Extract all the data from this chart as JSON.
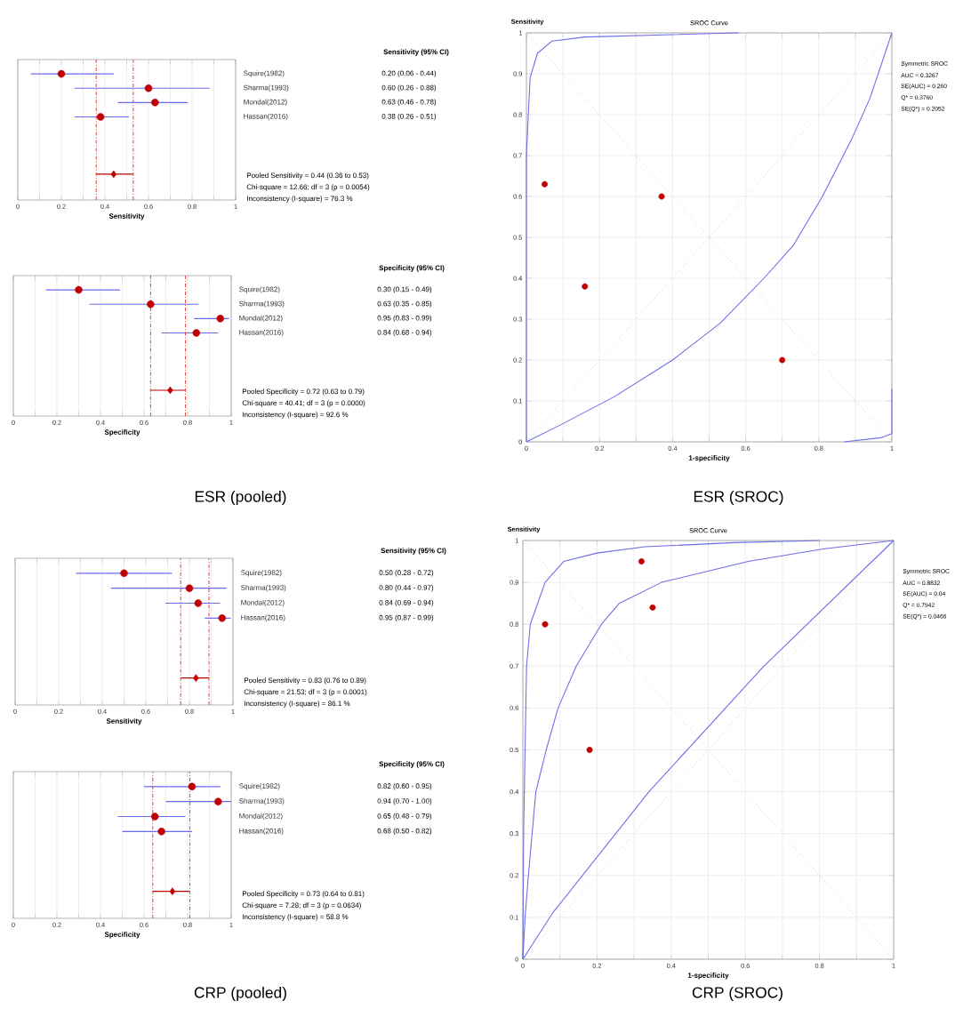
{
  "chart_data": [
    {
      "type": "scatter",
      "orientation": "horizontal",
      "xlabel": "Sensitivity",
      "categories": [
        "Squire(1982)",
        "Sharma(1993)",
        "Mondal(2012)",
        "Hassan(2016)",
        null,
        null,
        null,
        null
      ],
      "xlim": [
        0,
        1
      ],
      "xticks": [
        0,
        {
          "value": 0.1,
          "label": null
        },
        0.2,
        {
          "value": 0.3,
          "label": null
        },
        0.4,
        {
          "value": 0.5,
          "label": null
        },
        0.6,
        {
          "value": 0.7,
          "label": null
        },
        0.8,
        {
          "value": 0.9,
          "label": null
        },
        1
      ],
      "grid": "x",
      "series": [
        {
          "color": "#c00000",
          "marker": "circle",
          "values": [
            0.2,
            0.6,
            0.63,
            0.38,
            null,
            null,
            null,
            null
          ],
          "errors": [
            [
              0.06,
              0.44
            ],
            [
              0.26,
              0.88
            ],
            [
              0.46,
              0.78
            ],
            [
              0.26,
              0.51
            ],
            null,
            null,
            null,
            null
          ],
          "value_labels": [
            "0.20  (0.06 - 0.44)",
            "0.60  (0.26 - 0.88)",
            "0.63  (0.46 - 0.78)",
            "0.38  (0.26 - 0.51)",
            null,
            null,
            null,
            null
          ]
        },
        {
          "color": "#c00000",
          "marker": "diamond",
          "values": [
            null,
            null,
            null,
            null,
            null,
            null,
            null,
            0.44
          ],
          "errors": [
            null,
            null,
            null,
            null,
            null,
            null,
            null,
            [
              0.36,
              0.53
            ]
          ]
        }
      ],
      "ref_lines": [
        {
          "axis": "x",
          "value": 0.36,
          "color": "#e03030",
          "line_style": "dashed"
        },
        {
          "axis": "x",
          "value": 0.53,
          "color": "#e03030",
          "line_style": "dashed"
        }
      ],
      "annotations": [
        "Sensitivity (95% CI)",
        "Pooled Sensitivity = 0.44 (0.36 to 0.53)",
        "Chi-square = 12.66; df = 3 (p = 0.0054)",
        "Inconsistency (I-square) = 76.3 %"
      ]
    },
    {
      "type": "scatter",
      "orientation": "horizontal",
      "xlabel": "Specificity",
      "categories": [
        "Squire(1982)",
        "Sharma(1993)",
        "Mondal(2012)",
        "Hassan(2016)",
        null,
        null,
        null,
        null
      ],
      "xlim": [
        0,
        1
      ],
      "xticks": [
        0,
        {
          "value": 0.1,
          "label": null
        },
        0.2,
        {
          "value": 0.3,
          "label": null
        },
        0.4,
        {
          "value": 0.5,
          "label": null
        },
        0.6,
        {
          "value": 0.7,
          "label": null
        },
        0.8,
        {
          "value": 0.9,
          "label": null
        },
        1
      ],
      "grid": "x",
      "series": [
        {
          "color": "#c00000",
          "marker": "circle",
          "values": [
            0.3,
            0.63,
            0.95,
            0.84,
            null,
            null,
            null,
            null
          ],
          "errors": [
            [
              0.15,
              0.49
            ],
            [
              0.35,
              0.85
            ],
            [
              0.83,
              0.99
            ],
            [
              0.68,
              0.94
            ],
            null,
            null,
            null,
            null
          ],
          "value_labels": [
            "0.30  (0.15 - 0.49)",
            "0.63  (0.35 - 0.85)",
            "0.95  (0.83 - 0.99)",
            "0.84  (0.68 - 0.94)",
            null,
            null,
            null,
            null
          ]
        },
        {
          "color": "#c00000",
          "marker": "diamond",
          "values": [
            null,
            null,
            null,
            null,
            null,
            null,
            null,
            0.72
          ],
          "errors": [
            null,
            null,
            null,
            null,
            null,
            null,
            null,
            [
              0.63,
              0.79
            ]
          ]
        }
      ],
      "ref_lines": [
        {
          "axis": "x",
          "value": 0.63,
          "color": "#e03030",
          "line_style": "dashed"
        },
        {
          "axis": "x",
          "value": 0.79,
          "color": "#e03030",
          "line_style": "dashed"
        }
      ],
      "annotations": [
        "Specificity (95% CI)",
        "Pooled Specificity = 0.72 (0.63 to 0.79)",
        "Chi-square = 40.41; df = 3 (p = 0.0000)",
        "Inconsistency (I-square) = 92.6 %",
        "ESR (pooled)"
      ]
    },
    {
      "type": "line",
      "title": "SROC Curve",
      "ylabel": "Sensitivity",
      "xlabel": "1-specificity",
      "xlim": [
        0,
        1
      ],
      "ylim": [
        0,
        1
      ],
      "xticks": [
        0,
        {
          "value": 0.1,
          "label": null
        },
        0.2,
        {
          "value": 0.3,
          "label": null
        },
        0.4,
        {
          "value": 0.5,
          "label": null
        },
        0.6,
        {
          "value": 0.7,
          "label": null
        },
        0.8,
        {
          "value": 0.9,
          "label": null
        },
        1
      ],
      "yticks": [
        0,
        0.1,
        0.2,
        0.3,
        0.4,
        0.5,
        0.6,
        0.7,
        0.8,
        0.9,
        1
      ],
      "grid": true,
      "series": [
        {
          "color": "#dcdcdc",
          "line_style": "dotted",
          "x": [
            0,
            1
          ],
          "values": [
            0,
            1
          ]
        },
        {
          "color": "#dcdcdc",
          "line_style": "dotted",
          "x": [
            0,
            1
          ],
          "values": [
            1,
            0
          ]
        },
        {
          "color": "#6c6ce8",
          "x": [
            0,
            0.09,
            0.24,
            0.4,
            0.53,
            0.65,
            0.73,
            0.81,
            0.89,
            0.94,
            1
          ],
          "values": [
            0,
            0.04,
            0.11,
            0.2,
            0.29,
            0.4,
            0.48,
            0.6,
            0.74,
            0.84,
            1
          ]
        },
        {
          "color": "#6c6ce8",
          "x": [
            0,
            0,
            0.01,
            0.03,
            0.07,
            0.16,
            0.58
          ],
          "values": [
            0,
            0.7,
            0.89,
            0.95,
            0.98,
            0.99,
            1
          ]
        },
        {
          "color": "#6c6ce8",
          "x": [
            0.87,
            0.97,
            1,
            1
          ],
          "values": [
            0,
            0.01,
            0.02,
            0.13
          ]
        },
        {
          "type": "scatter",
          "color": "#c00000",
          "marker": "circle",
          "x": [
            0.05,
            0.16,
            0.37,
            0.7
          ],
          "values": [
            0.63,
            0.38,
            0.6,
            0.2
          ]
        }
      ],
      "annotations": [
        "Symmetric SROC",
        "AUC = 0.3267",
        "SE(AUC) = 0.260",
        "Q* = 0.3760",
        "SE(Q*) = 0.2052",
        "ESR (SROC)"
      ]
    },
    {
      "type": "scatter",
      "orientation": "horizontal",
      "xlabel": "Sensitivity",
      "categories": [
        "Squire(1982)",
        "Sharma(1993)",
        "Mondal(2012)",
        "Hassan(2016)",
        null,
        null,
        null,
        null
      ],
      "xlim": [
        0,
        1
      ],
      "xticks": [
        0,
        {
          "value": 0.1,
          "label": null
        },
        0.2,
        {
          "value": 0.3,
          "label": null
        },
        0.4,
        {
          "value": 0.5,
          "label": null
        },
        0.6,
        {
          "value": 0.7,
          "label": null
        },
        0.8,
        {
          "value": 0.9,
          "label": null
        },
        1
      ],
      "grid": "x",
      "series": [
        {
          "color": "#c00000",
          "marker": "circle",
          "values": [
            0.5,
            0.8,
            0.84,
            0.95,
            null,
            null,
            null,
            null
          ],
          "errors": [
            [
              0.28,
              0.72
            ],
            [
              0.44,
              0.97
            ],
            [
              0.69,
              0.94
            ],
            [
              0.87,
              0.99
            ],
            null,
            null,
            null,
            null
          ],
          "value_labels": [
            "0.50  (0.28 - 0.72)",
            "0.80  (0.44 - 0.97)",
            "0.84  (0.69 - 0.94)",
            "0.95  (0.87 - 0.99)",
            null,
            null,
            null,
            null
          ]
        },
        {
          "color": "#c00000",
          "marker": "diamond",
          "values": [
            null,
            null,
            null,
            null,
            null,
            null,
            null,
            0.83
          ],
          "errors": [
            null,
            null,
            null,
            null,
            null,
            null,
            null,
            [
              0.76,
              0.89
            ]
          ]
        }
      ],
      "ref_lines": [
        {
          "axis": "x",
          "value": 0.76,
          "color": "#e03030",
          "line_style": "dashed"
        },
        {
          "axis": "x",
          "value": 0.89,
          "color": "#e03030",
          "line_style": "dashed"
        }
      ],
      "annotations": [
        "Sensitivity (95% CI)",
        "Pooled Sensitivity = 0.83 (0.76 to 0.89)",
        "Chi-square = 21.53; df = 3 (p = 0.0001)",
        "Inconsistency (I-square) = 86.1 %"
      ]
    },
    {
      "type": "scatter",
      "orientation": "horizontal",
      "xlabel": "Specificity",
      "categories": [
        "Squire(1982)",
        "Sharma(1993)",
        "Mondal(2012)",
        "Hassan(2016)",
        null,
        null,
        null,
        null
      ],
      "xlim": [
        0,
        1
      ],
      "xticks": [
        0,
        {
          "value": 0.1,
          "label": null
        },
        0.2,
        {
          "value": 0.3,
          "label": null
        },
        0.4,
        {
          "value": 0.5,
          "label": null
        },
        0.6,
        {
          "value": 0.7,
          "label": null
        },
        0.8,
        {
          "value": 0.9,
          "label": null
        },
        1
      ],
      "grid": "x",
      "series": [
        {
          "color": "#c00000",
          "marker": "circle",
          "values": [
            0.82,
            0.94,
            0.65,
            0.68,
            null,
            null,
            null,
            null
          ],
          "errors": [
            [
              0.6,
              0.95
            ],
            [
              0.7,
              1.0
            ],
            [
              0.48,
              0.79
            ],
            [
              0.5,
              0.82
            ],
            null,
            null,
            null,
            null
          ],
          "value_labels": [
            "0.82  (0.60 - 0.95)",
            "0.94  (0.70 - 1.00)",
            "0.65  (0.48 - 0.79)",
            "0.68  (0.50 - 0.82)",
            null,
            null,
            null,
            null
          ]
        },
        {
          "color": "#c00000",
          "marker": "diamond",
          "values": [
            null,
            null,
            null,
            null,
            null,
            null,
            null,
            0.73
          ],
          "errors": [
            null,
            null,
            null,
            null,
            null,
            null,
            null,
            [
              0.64,
              0.81
            ]
          ]
        }
      ],
      "ref_lines": [
        {
          "axis": "x",
          "value": 0.64,
          "color": "#e03030",
          "line_style": "dashed"
        },
        {
          "axis": "x",
          "value": 0.81,
          "color": "#e03030",
          "line_style": "dashed"
        }
      ],
      "annotations": [
        "Specificity (95% CI)",
        "Pooled Specificity = 0.73 (0.64 to 0.81)",
        "Chi-square = 7.28; df = 3 (p = 0.0634)",
        "Inconsistency (I-square) = 58.8 %",
        "CRP (pooled)"
      ]
    },
    {
      "type": "line",
      "title": "SROC Curve",
      "ylabel": "Sensitivity",
      "xlabel": "1-specificity",
      "xlim": [
        0,
        1
      ],
      "ylim": [
        0,
        1
      ],
      "xticks": [
        0,
        {
          "value": 0.1,
          "label": null
        },
        0.2,
        {
          "value": 0.3,
          "label": null
        },
        0.4,
        {
          "value": 0.5,
          "label": null
        },
        0.6,
        {
          "value": 0.7,
          "label": null
        },
        0.8,
        {
          "value": 0.9,
          "label": null
        },
        1
      ],
      "yticks": [
        0,
        0.1,
        0.2,
        0.3,
        0.4,
        0.5,
        0.6,
        0.7,
        0.8,
        0.9,
        1
      ],
      "grid": true,
      "series": [
        {
          "color": "#dcdcdc",
          "line_style": "dotted",
          "x": [
            0,
            1
          ],
          "values": [
            0,
            1
          ]
        },
        {
          "color": "#dcdcdc",
          "line_style": "dotted",
          "x": [
            0,
            1
          ],
          "values": [
            1,
            0
          ]
        },
        {
          "color": "#6c6ce8",
          "x": [
            0,
            0.006,
            0.015,
            0.035,
            0.063,
            0.095,
            0.144,
            0.212,
            0.26,
            0.374,
            0.608,
            0.81,
            1
          ],
          "values": [
            0,
            0.1,
            0.2,
            0.4,
            0.5,
            0.6,
            0.7,
            0.8,
            0.85,
            0.9,
            0.95,
            0.98,
            1
          ]
        },
        {
          "color": "#6c6ce8",
          "x": [
            0,
            0.002,
            0.01,
            0.02,
            0.06,
            0.11,
            0.2,
            0.33,
            0.57,
            0.8
          ],
          "values": [
            0,
            0.3,
            0.7,
            0.8,
            0.9,
            0.95,
            0.97,
            0.985,
            0.995,
            1
          ]
        },
        {
          "color": "#6c6ce8",
          "x": [
            0,
            0.08,
            0.34,
            0.65,
            1
          ],
          "values": [
            0,
            0.11,
            0.4,
            0.7,
            1
          ]
        },
        {
          "type": "scatter",
          "color": "#c00000",
          "marker": "circle",
          "x": [
            0.18,
            0.06,
            0.35,
            0.32
          ],
          "values": [
            0.5,
            0.8,
            0.84,
            0.95
          ]
        }
      ],
      "annotations": [
        "Symmetric SROC",
        "AUC = 0.8832",
        "SE(AUC) = 0.04",
        "Q* = 0.7942",
        "SE(Q*) = 0.0466",
        "CRP (SROC)"
      ]
    }
  ]
}
